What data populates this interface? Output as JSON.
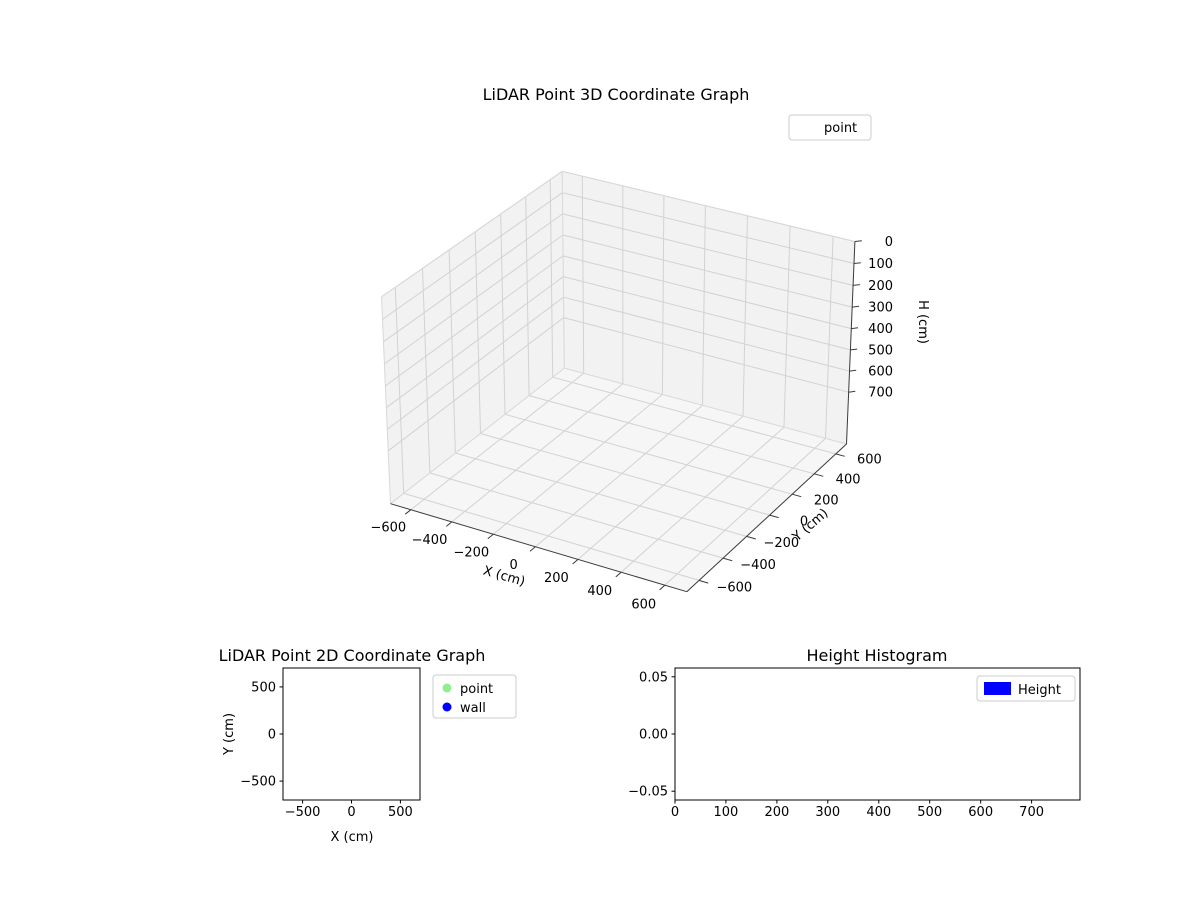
{
  "figure": {
    "background": "#ffffff"
  },
  "chart_data": [
    {
      "id": "plot3d",
      "type": "scatter",
      "projection": "3d",
      "title": "LiDAR Point 3D Coordinate Graph",
      "xlabel": "X (cm)",
      "ylabel": "Y (cm)",
      "zlabel": "H (cm)",
      "xlim": [
        -700,
        700
      ],
      "ylim": [
        -700,
        700
      ],
      "zlim": [
        0,
        950
      ],
      "z_axis_inverted": true,
      "x_tick_values": [
        -600,
        -400,
        -200,
        0,
        200,
        400,
        600
      ],
      "x_tick_labels": [
        "−600",
        "−400",
        "−200",
        "0",
        "200",
        "400",
        "600"
      ],
      "y_tick_values": [
        -600,
        -400,
        -200,
        0,
        200,
        400,
        600
      ],
      "y_tick_labels": [
        "−600",
        "−400",
        "−200",
        "0",
        "200",
        "400",
        "600"
      ],
      "z_tick_values": [
        0,
        100,
        200,
        300,
        400,
        500,
        600,
        700
      ],
      "z_tick_labels": [
        "0",
        "100",
        "200",
        "300",
        "400",
        "500",
        "600",
        "700"
      ],
      "grid": true,
      "legend": [
        {
          "label": "point",
          "marker": "none"
        }
      ],
      "legend_position": "upper right outside",
      "points": [],
      "colors": {
        "pane": "#f2f2f2",
        "floor": "#f6f6f6",
        "grid": "#d2d2d2",
        "axis": "#3a3a3a"
      }
    },
    {
      "id": "plot2d",
      "type": "scatter",
      "title": "LiDAR Point 2D Coordinate Graph",
      "xlabel": "X (cm)",
      "ylabel": "Y (cm)",
      "xlim": [
        -700,
        700
      ],
      "ylim": [
        -700,
        700
      ],
      "x_tick_values": [
        -500,
        0,
        500
      ],
      "x_tick_labels": [
        "−500",
        "0",
        "500"
      ],
      "y_tick_values": [
        -500,
        0,
        500
      ],
      "y_tick_labels": [
        "−500",
        "0",
        "500"
      ],
      "grid": false,
      "legend": [
        {
          "label": "point",
          "color": "#90ee90"
        },
        {
          "label": "wall",
          "color": "#0000ff"
        }
      ],
      "legend_position": "outside right",
      "points": []
    },
    {
      "id": "histogram",
      "type": "bar",
      "title": "Height Histogram",
      "xlabel": "",
      "ylabel": "",
      "xlim": [
        0,
        795
      ],
      "ylim": [
        -0.0577,
        0.0577
      ],
      "x_tick_values": [
        0,
        100,
        200,
        300,
        400,
        500,
        600,
        700
      ],
      "x_tick_labels": [
        "0",
        "100",
        "200",
        "300",
        "400",
        "500",
        "600",
        "700"
      ],
      "y_tick_values": [
        0.05,
        0,
        -0.05
      ],
      "y_tick_labels": [
        "0.05",
        "0.00",
        "−0.05"
      ],
      "grid": false,
      "legend": [
        {
          "label": "Height",
          "color": "#0000ff"
        }
      ],
      "legend_position": "upper right inside",
      "values": []
    }
  ]
}
